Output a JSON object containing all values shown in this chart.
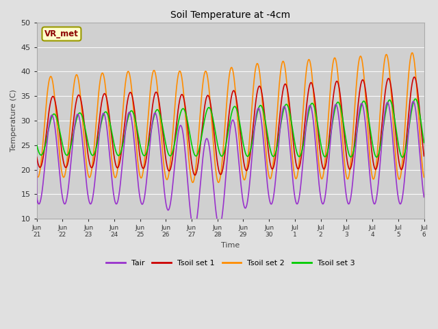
{
  "title": "Soil Temperature at -4cm",
  "xlabel": "Time",
  "ylabel": "Temperature (C)",
  "ylim": [
    10,
    50
  ],
  "xlim_start": 1,
  "xlim_end": 16,
  "fig_width": 6.4,
  "fig_height": 4.8,
  "dpi": 100,
  "background_color": "#e0e0e0",
  "plot_bg_color": "#d0d0d0",
  "annotation_text": "VR_met",
  "annotation_bg": "#ffffcc",
  "annotation_edge": "#999900",
  "annotation_text_color": "#8b0000",
  "colors": {
    "Tair": "#9932cc",
    "Tsoil_set1": "#cc0000",
    "Tsoil_set2": "#ff8c00",
    "Tsoil_set3": "#00cc00"
  },
  "legend_labels": [
    "Tair",
    "Tsoil set 1",
    "Tsoil set 2",
    "Tsoil set 3"
  ],
  "xtick_labels": [
    "Jun 21",
    "Jun 22",
    "Jun 23",
    "Jun 24",
    "Jun 25",
    "Jun 26",
    "Jun 27",
    "Jun 28",
    "Jun 29",
    "Jun 30",
    "Jul 1",
    "Jul 2",
    "Jul 3",
    "Jul 4",
    "Jul 5",
    "Jul 6"
  ],
  "xtick_positions": [
    1,
    2,
    3,
    4,
    5,
    6,
    7,
    8,
    9,
    10,
    11,
    12,
    13,
    14,
    15,
    16
  ],
  "ytick_positions": [
    10,
    15,
    20,
    25,
    30,
    35,
    40,
    45,
    50
  ]
}
